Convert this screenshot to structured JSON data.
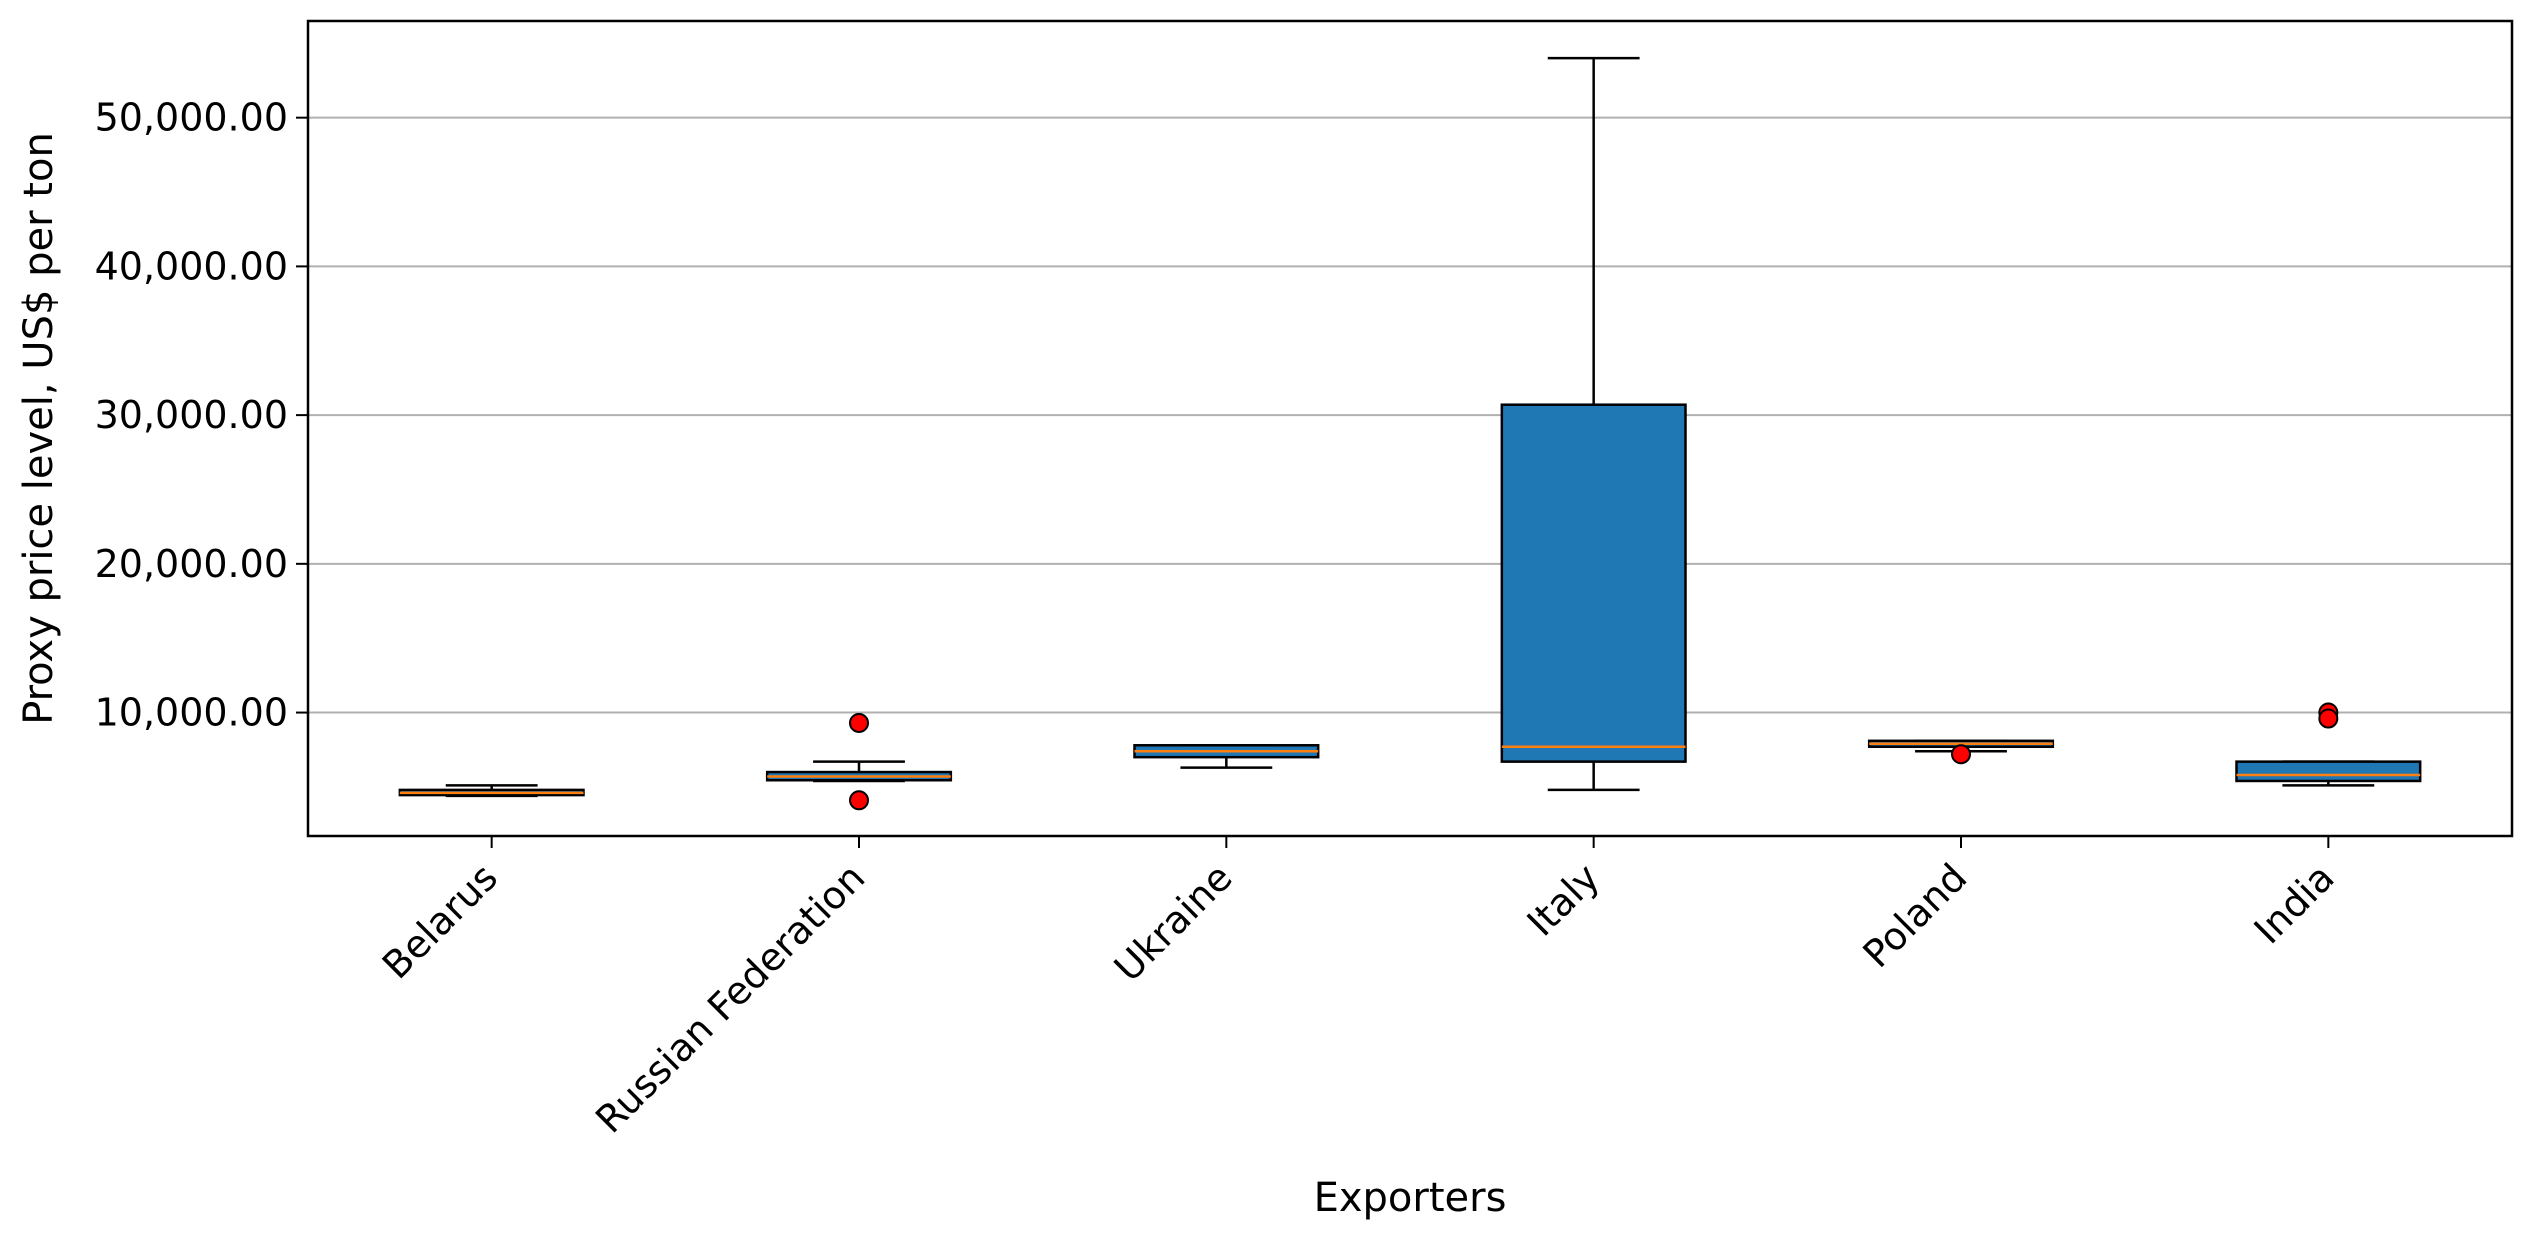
{
  "chart_data": {
    "type": "box",
    "title": "",
    "xlabel": "Exporters",
    "ylabel": "Proxy price level, US$ per ton",
    "ylim": [
      1700,
      56500
    ],
    "yticks": [
      10000,
      20000,
      30000,
      40000,
      50000
    ],
    "ytick_labels": [
      "10,000.00",
      "20,000.00",
      "30,000.00",
      "40,000.00",
      "50,000.00"
    ],
    "grid": "horizontal",
    "colors": {
      "box_fill": "#1f77b4",
      "median": "#ff7f0e",
      "outlier_fill": "#ff0000",
      "grid": "#b0b0b0",
      "edge": "#000000"
    },
    "categories": [
      "Belarus",
      "Russian Federation",
      "Ukraine",
      "Italy",
      "Poland",
      "India"
    ],
    "boxes": [
      {
        "category": "Belarus",
        "whisker_low": 4400,
        "q1": 4450,
        "median": 4600,
        "q3": 4800,
        "whisker_high": 5100,
        "outliers": []
      },
      {
        "category": "Russian Federation",
        "whisker_low": 5400,
        "q1": 5450,
        "median": 5700,
        "q3": 6000,
        "whisker_high": 6700,
        "outliers": [
          9300,
          4100
        ]
      },
      {
        "category": "Ukraine",
        "whisker_low": 6300,
        "q1": 7000,
        "median": 7400,
        "q3": 7800,
        "whisker_high": 7800,
        "outliers": []
      },
      {
        "category": "Italy",
        "whisker_low": 4800,
        "q1": 6700,
        "median": 7700,
        "q3": 30700,
        "whisker_high": 54000,
        "outliers": []
      },
      {
        "category": "Poland",
        "whisker_low": 7400,
        "q1": 7700,
        "median": 7900,
        "q3": 8100,
        "whisker_high": 8100,
        "outliers": [
          7200
        ]
      },
      {
        "category": "India",
        "whisker_low": 5100,
        "q1": 5400,
        "median": 5800,
        "q3": 6700,
        "whisker_high": 6700,
        "outliers": [
          10000,
          9600
        ]
      }
    ]
  }
}
